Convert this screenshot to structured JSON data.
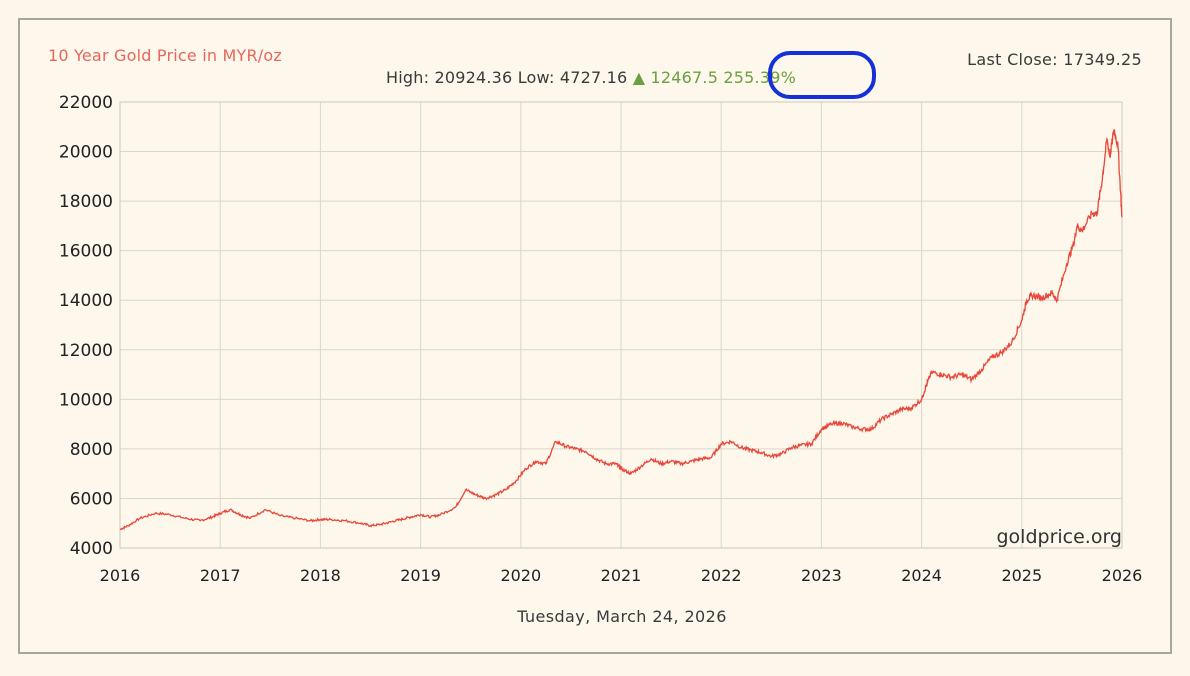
{
  "chart_data": {
    "type": "line",
    "title": "10 Year Gold Price in MYR/oz",
    "summary": {
      "high_label": "High:",
      "high": "20924.36",
      "low_label": "Low:",
      "low": "4727.16",
      "change_arrow": "▲",
      "change": "12467.5",
      "change_pct": "255.39%"
    },
    "last_close_label": "Last Close:",
    "last_close": "17349.25",
    "watermark": "goldprice.org",
    "date": "Tuesday, March 24, 2026",
    "xlabel": "",
    "ylabel": "",
    "ylim": [
      4000,
      22000
    ],
    "xlim": [
      2016,
      2026
    ],
    "yticks": [
      4000,
      6000,
      8000,
      10000,
      12000,
      14000,
      16000,
      18000,
      20000,
      22000
    ],
    "xticks": [
      2016,
      2017,
      2018,
      2019,
      2020,
      2021,
      2022,
      2023,
      2024,
      2025,
      2026
    ],
    "grid": true,
    "line_color": "#e8473a",
    "series": [
      {
        "x": [
          2016.0,
          2016.08,
          2016.2,
          2016.35,
          2016.5,
          2016.65,
          2016.8,
          2016.92,
          2017.0,
          2017.1,
          2017.2,
          2017.3,
          2017.45,
          2017.6,
          2017.75,
          2017.9,
          2018.0,
          2018.1,
          2018.25,
          2018.4,
          2018.5,
          2018.6,
          2018.7,
          2018.8,
          2018.9,
          2019.0,
          2019.1,
          2019.2,
          2019.35,
          2019.45,
          2019.55,
          2019.65,
          2019.75,
          2019.85,
          2019.95,
          2020.05,
          2020.15,
          2020.25,
          2020.35,
          2020.45,
          2020.55,
          2020.65,
          2020.75,
          2020.85,
          2020.95,
          2021.0,
          2021.1,
          2021.2,
          2021.3,
          2021.4,
          2021.5,
          2021.6,
          2021.7,
          2021.8,
          2021.9,
          2022.0,
          2022.1,
          2022.2,
          2022.3,
          2022.4,
          2022.5,
          2022.6,
          2022.7,
          2022.8,
          2022.9,
          2023.0,
          2023.1,
          2023.2,
          2023.3,
          2023.4,
          2023.5,
          2023.6,
          2023.7,
          2023.8,
          2023.9,
          2024.0,
          2024.05,
          2024.1,
          2024.2,
          2024.3,
          2024.4,
          2024.5,
          2024.6,
          2024.7,
          2024.8,
          2024.9,
          2025.0,
          2025.05,
          2025.1,
          2025.2,
          2025.3,
          2025.35,
          2025.45,
          2025.52,
          2025.55,
          2025.6,
          2025.7,
          2025.75,
          2025.8,
          2025.85,
          2025.88,
          2025.92,
          2025.96,
          2026.0
        ],
        "values": [
          4750,
          4900,
          5200,
          5400,
          5350,
          5200,
          5100,
          5250,
          5400,
          5550,
          5350,
          5200,
          5550,
          5300,
          5200,
          5100,
          5150,
          5150,
          5100,
          5000,
          4900,
          4950,
          5050,
          5150,
          5250,
          5350,
          5250,
          5350,
          5650,
          6350,
          6150,
          6000,
          6150,
          6350,
          6700,
          7200,
          7500,
          7400,
          8300,
          8100,
          8000,
          7900,
          7600,
          7400,
          7400,
          7200,
          7000,
          7300,
          7600,
          7400,
          7500,
          7400,
          7500,
          7600,
          7650,
          8200,
          8300,
          8050,
          7950,
          7850,
          7700,
          7800,
          8050,
          8150,
          8200,
          8800,
          9000,
          9050,
          8900,
          8800,
          8800,
          9200,
          9400,
          9600,
          9650,
          10000,
          10600,
          11100,
          11000,
          10900,
          11000,
          10800,
          11200,
          11700,
          11900,
          12300,
          13200,
          14000,
          14200,
          14100,
          14300,
          14000,
          15500,
          16300,
          17000,
          16800,
          17500,
          17500,
          18800,
          20500,
          19800,
          20900,
          20200,
          17349
        ]
      }
    ]
  }
}
